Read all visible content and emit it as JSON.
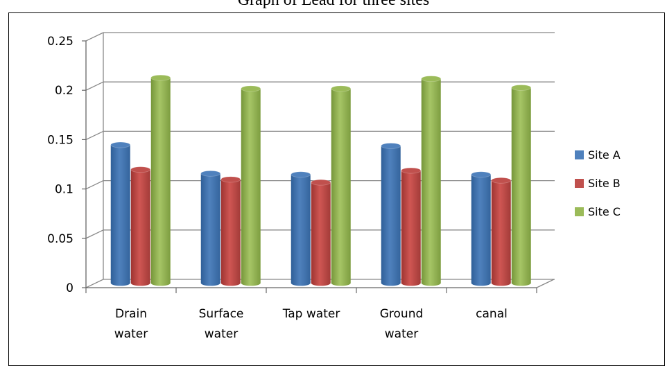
{
  "chart_data": {
    "type": "bar",
    "title": "Graph of Lead for three sites",
    "categories": [
      [
        "Drain",
        "water"
      ],
      [
        "Surface",
        "water"
      ],
      [
        "Tap water"
      ],
      [
        "Ground",
        "water"
      ],
      [
        "canal"
      ]
    ],
    "series": [
      {
        "name": "Site  A",
        "values": [
          0.14,
          0.111,
          0.11,
          0.139,
          0.11
        ],
        "color": "#4f81bd"
      },
      {
        "name": "Site B",
        "values": [
          0.115,
          0.105,
          0.102,
          0.114,
          0.104
        ],
        "color": "#c0504d"
      },
      {
        "name": "Site C",
        "values": [
          0.208,
          0.197,
          0.197,
          0.207,
          0.198
        ],
        "color": "#9bbb59"
      }
    ],
    "ylim": [
      0,
      0.25
    ],
    "yticks": [
      "0",
      "0.05",
      "0.1",
      "0.15",
      "0.2",
      "0.25"
    ],
    "grid": true,
    "legend": "right",
    "xlabel": "",
    "ylabel": ""
  }
}
